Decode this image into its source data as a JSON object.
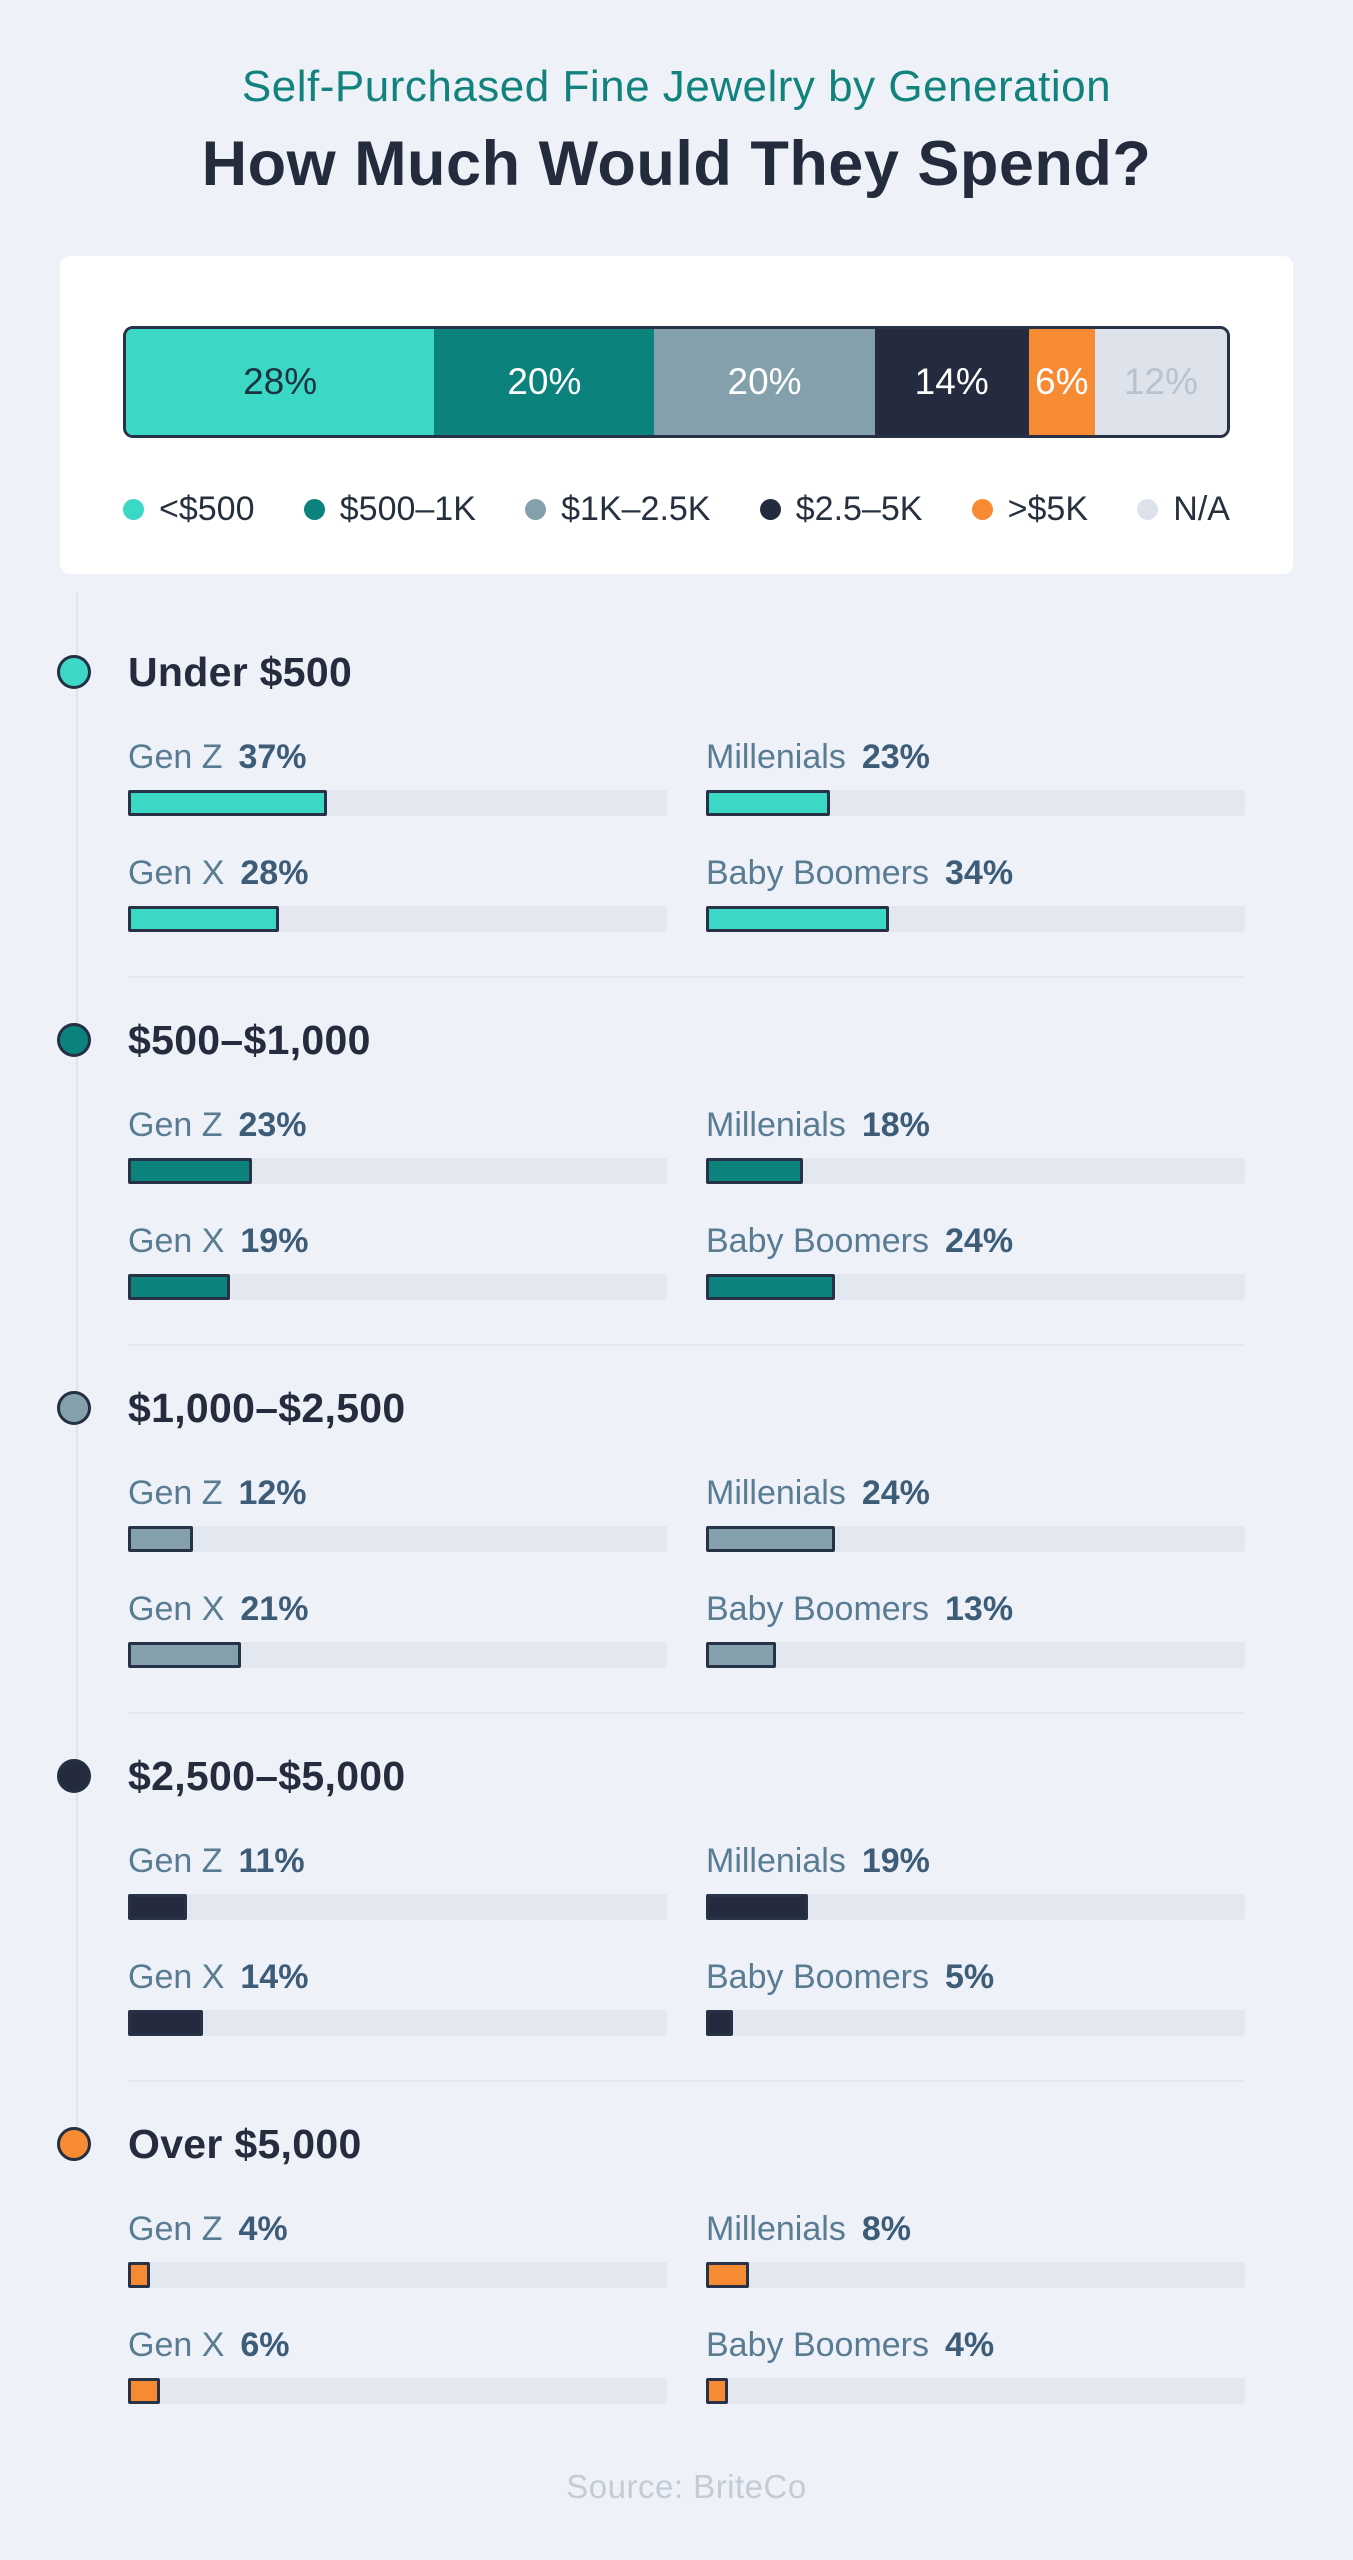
{
  "header": {
    "subtitle": "Self-Purchased Fine Jewelry by Generation",
    "title": "How Much Would They Spend?"
  },
  "overview": {
    "segments": [
      {
        "label": "28%",
        "value": 28,
        "color": "#3BD8C5",
        "text_color": "#1D3440"
      },
      {
        "label": "20%",
        "value": 20,
        "color": "#0B827B",
        "text_color": "#FFFFFF"
      },
      {
        "label": "20%",
        "value": 20,
        "color": "#84A0AD",
        "text_color": "#FFFFFF"
      },
      {
        "label": "14%",
        "value": 14,
        "color": "#242B3E",
        "text_color": "#FFFFFF"
      },
      {
        "label": "6%",
        "value": 6,
        "color": "#F78B33",
        "text_color": "#FFFFFF"
      },
      {
        "label": "12%",
        "value": 12,
        "color": "#DDE2EB",
        "text_color": "#B9C3CF"
      }
    ],
    "legend": [
      {
        "label": "<$500",
        "color": "#3BD8C5"
      },
      {
        "label": "$500–1K",
        "color": "#0B827B"
      },
      {
        "label": "$1K–2.5K",
        "color": "#84A0AD"
      },
      {
        "label": "$2.5–5K",
        "color": "#242B3E"
      },
      {
        "label": ">$5K",
        "color": "#F78B33"
      },
      {
        "label": "N/A",
        "color": "#DDE2EB"
      }
    ]
  },
  "sections": [
    {
      "title": "Under $500",
      "color": "#3BD8C5",
      "gens": [
        {
          "name": "Gen Z",
          "pct": "37%",
          "value": 37
        },
        {
          "name": "Millenials",
          "pct": "23%",
          "value": 23
        },
        {
          "name": "Gen X",
          "pct": "28%",
          "value": 28
        },
        {
          "name": "Baby Boomers",
          "pct": "34%",
          "value": 34
        }
      ]
    },
    {
      "title": "$500–$1,000",
      "color": "#0B827B",
      "gens": [
        {
          "name": "Gen Z",
          "pct": "23%",
          "value": 23
        },
        {
          "name": "Millenials",
          "pct": "18%",
          "value": 18
        },
        {
          "name": "Gen X",
          "pct": "19%",
          "value": 19
        },
        {
          "name": "Baby Boomers",
          "pct": "24%",
          "value": 24
        }
      ]
    },
    {
      "title": "$1,000–$2,500",
      "color": "#84A0AD",
      "gens": [
        {
          "name": "Gen Z",
          "pct": "12%",
          "value": 12
        },
        {
          "name": "Millenials",
          "pct": "24%",
          "value": 24
        },
        {
          "name": "Gen X",
          "pct": "21%",
          "value": 21
        },
        {
          "name": "Baby Boomers",
          "pct": "13%",
          "value": 13
        }
      ]
    },
    {
      "title": "$2,500–$5,000",
      "color": "#242B3E",
      "gens": [
        {
          "name": "Gen Z",
          "pct": "11%",
          "value": 11
        },
        {
          "name": "Millenials",
          "pct": "19%",
          "value": 19
        },
        {
          "name": "Gen X",
          "pct": "14%",
          "value": 14
        },
        {
          "name": "Baby Boomers",
          "pct": "5%",
          "value": 5
        }
      ]
    },
    {
      "title": "Over $5,000",
      "color": "#F78B33",
      "gens": [
        {
          "name": "Gen Z",
          "pct": "4%",
          "value": 4
        },
        {
          "name": "Millenials",
          "pct": "8%",
          "value": 8
        },
        {
          "name": "Gen X",
          "pct": "6%",
          "value": 6
        },
        {
          "name": "Baby Boomers",
          "pct": "4%",
          "value": 4
        }
      ]
    }
  ],
  "footer": {
    "source": "Source: BriteCo"
  },
  "chart_data": [
    {
      "type": "bar",
      "subtype": "horizontal-stacked",
      "title": "How Much Would They Spend?",
      "subtitle": "Self-Purchased Fine Jewelry by Generation",
      "categories": [
        "<$500",
        "$500–1K",
        "$1K–2.5K",
        "$2.5–5K",
        ">$5K",
        "N/A"
      ],
      "values": [
        28,
        20,
        20,
        14,
        6,
        12
      ],
      "unit": "%",
      "legend_position": "bottom",
      "xlim": [
        0,
        100
      ]
    },
    {
      "type": "bar",
      "subtype": "horizontal-grouped",
      "title": "Spend bracket by generation",
      "categories": [
        "Gen Z",
        "Millenials",
        "Gen X",
        "Baby Boomers"
      ],
      "series": [
        {
          "name": "Under $500",
          "values": [
            37,
            23,
            28,
            34
          ]
        },
        {
          "name": "$500–$1,000",
          "values": [
            23,
            18,
            19,
            24
          ]
        },
        {
          "name": "$1,000–$2,500",
          "values": [
            12,
            24,
            21,
            13
          ]
        },
        {
          "name": "$2,500–$5,000",
          "values": [
            11,
            19,
            14,
            5
          ]
        },
        {
          "name": "Over $5,000",
          "values": [
            4,
            8,
            6,
            4
          ]
        }
      ],
      "unit": "%",
      "xlim": [
        0,
        100
      ],
      "grid": false
    }
  ]
}
